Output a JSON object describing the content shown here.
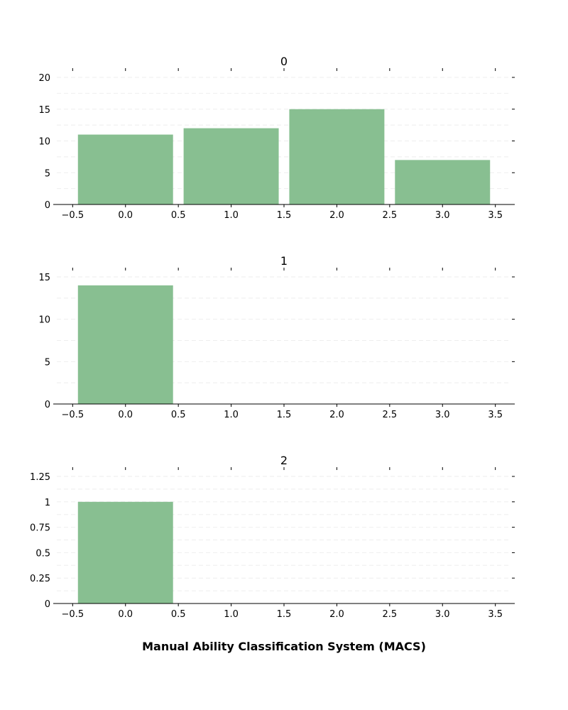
{
  "chart_data": {
    "type": "bar",
    "xlabel": "Manual Ability Classification System (MACS)",
    "bar_color": "#88bf91",
    "grid": "dashed-horizontal",
    "legend": "none",
    "xlim": [
      -0.65,
      3.65
    ],
    "x_ticks": [
      -0.5,
      0.0,
      0.5,
      1.0,
      1.5,
      2.0,
      2.5,
      3.0,
      3.5
    ],
    "x_tick_labels": [
      "−0.5",
      "0.0",
      "0.5",
      "1.0",
      "1.5",
      "2.0",
      "2.5",
      "3.0",
      "3.5"
    ],
    "panels": [
      {
        "title": "0",
        "x": [
          0,
          1,
          2,
          3
        ],
        "values": [
          11,
          12,
          15,
          7
        ],
        "ylim": [
          0,
          20
        ],
        "y_ticks": [
          0,
          5,
          10,
          15,
          20
        ],
        "y_tick_labels": [
          "0",
          "5",
          "10",
          "15",
          "20"
        ]
      },
      {
        "title": "1",
        "x": [
          0
        ],
        "values": [
          14
        ],
        "ylim": [
          0,
          15
        ],
        "y_ticks": [
          0,
          5,
          10,
          15
        ],
        "y_tick_labels": [
          "0",
          "5",
          "10",
          "15"
        ]
      },
      {
        "title": "2",
        "x": [
          0
        ],
        "values": [
          1
        ],
        "ylim": [
          0,
          1.25
        ],
        "y_ticks": [
          0,
          0.25,
          0.5,
          0.75,
          1,
          1.25
        ],
        "y_tick_labels": [
          "0",
          "0.25",
          "0.5",
          "0.75",
          "1",
          "1.25"
        ]
      }
    ]
  }
}
